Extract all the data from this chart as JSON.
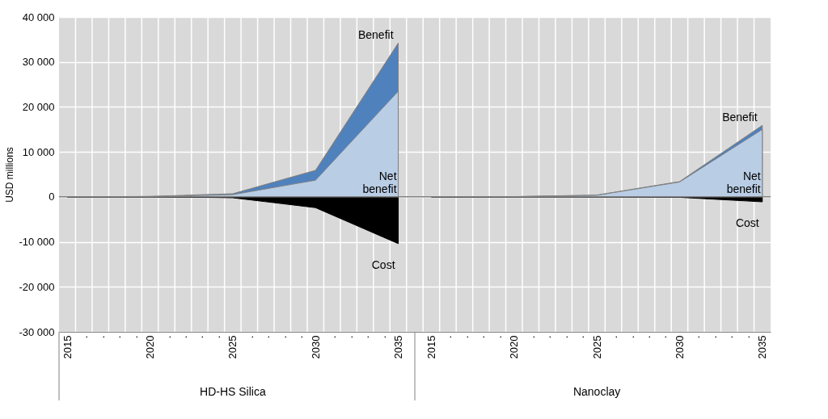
{
  "chart_data": {
    "type": "area",
    "ylabel": "USD millions",
    "categories": [
      "2015",
      ".",
      ".",
      ".",
      ".",
      "2020",
      ".",
      ".",
      ".",
      ".",
      "2025",
      ".",
      ".",
      ".",
      ".",
      "2030",
      ".",
      ".",
      ".",
      ".",
      "2035",
      null,
      "2015",
      ".",
      ".",
      ".",
      ".",
      "2020",
      ".",
      ".",
      ".",
      ".",
      "2025",
      ".",
      ".",
      ".",
      ".",
      "2030",
      ".",
      ".",
      ".",
      ".",
      "2035"
    ],
    "series": [
      {
        "name": "Benefit",
        "color": "#4f81bd",
        "values": [
          0,
          20,
          40,
          60,
          80,
          100,
          220,
          340,
          460,
          580,
          700,
          1740,
          2780,
          3820,
          4860,
          5900,
          11560,
          17220,
          22880,
          28540,
          34200,
          null,
          0,
          10,
          20,
          30,
          40,
          50,
          120,
          190,
          260,
          330,
          400,
          1000,
          1600,
          2200,
          2800,
          3400,
          5900,
          8400,
          10900,
          13400,
          15900
        ]
      },
      {
        "name": "Net benefit",
        "color": "#b9cde5",
        "values": [
          0,
          15,
          30,
          45,
          60,
          80,
          160,
          240,
          320,
          400,
          500,
          1140,
          1780,
          2420,
          3060,
          3700,
          7660,
          11620,
          15580,
          19540,
          23500,
          null,
          0,
          10,
          20,
          30,
          40,
          50,
          110,
          170,
          230,
          290,
          350,
          940,
          1530,
          2120,
          2710,
          3300,
          5640,
          7980,
          10320,
          12660,
          15000
        ]
      },
      {
        "name": "Cost",
        "color": "#000000",
        "values": [
          0,
          -5,
          -10,
          -15,
          -20,
          -20,
          -50,
          -80,
          -110,
          -140,
          -200,
          -640,
          -1080,
          -1520,
          -1960,
          -2400,
          -4000,
          -5600,
          -7200,
          -8800,
          -10400,
          null,
          0,
          0,
          0,
          0,
          0,
          0,
          -5,
          -10,
          -15,
          -20,
          -30,
          -40,
          -50,
          -60,
          -80,
          -100,
          -300,
          -500,
          -700,
          -900,
          -1100
        ]
      }
    ],
    "ylim": [
      -30000,
      40000
    ],
    "yticks": [
      {
        "value": -30000,
        "label": "-30 000"
      },
      {
        "value": -20000,
        "label": "-20 000"
      },
      {
        "value": -10000,
        "label": "-10 000"
      },
      {
        "value": 0,
        "label": "0"
      },
      {
        "value": 10000,
        "label": "10 000"
      },
      {
        "value": 20000,
        "label": "20 000"
      },
      {
        "value": 30000,
        "label": "30 000"
      },
      {
        "value": 40000,
        "label": "40 000"
      }
    ],
    "grid": true,
    "annotations": [
      "HD-HS Silica",
      "Nanoclay"
    ]
  }
}
